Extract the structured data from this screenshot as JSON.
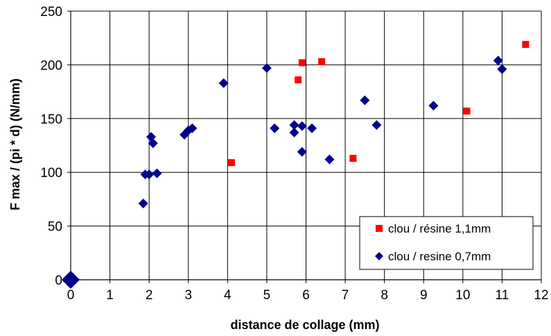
{
  "colors": {
    "series_red": "#ff0000",
    "series_blue": "#00008b",
    "grid": "#000000"
  },
  "chart_data": {
    "type": "scatter",
    "xlabel": "distance de collage (mm)",
    "ylabel": "F max / (pi * d) (N/mm)",
    "xlim": [
      0,
      12
    ],
    "ylim": [
      0,
      250
    ],
    "x_ticks": [
      0,
      1,
      2,
      3,
      4,
      5,
      6,
      7,
      8,
      9,
      10,
      11,
      12
    ],
    "y_ticks": [
      0,
      50,
      100,
      150,
      200,
      250
    ],
    "grid": true,
    "legend_position": "bottom-right",
    "series": [
      {
        "name": "clou / résine 1,1mm",
        "marker": "square",
        "color": "#ff0000",
        "points": [
          [
            4.1,
            109
          ],
          [
            5.8,
            186
          ],
          [
            5.9,
            202
          ],
          [
            6.4,
            203
          ],
          [
            7.2,
            113
          ],
          [
            10.1,
            157
          ],
          [
            11.6,
            219
          ]
        ]
      },
      {
        "name": "clou / resine 0,7mm",
        "marker": "diamond",
        "color": "#00008b",
        "points": [
          [
            0,
            0
          ],
          [
            1.85,
            71
          ],
          [
            1.9,
            98
          ],
          [
            2.0,
            98
          ],
          [
            2.05,
            133
          ],
          [
            2.1,
            127
          ],
          [
            2.2,
            99
          ],
          [
            2.9,
            135
          ],
          [
            3.0,
            139
          ],
          [
            3.1,
            141
          ],
          [
            3.9,
            183
          ],
          [
            5.0,
            197
          ],
          [
            5.2,
            141
          ],
          [
            5.7,
            137
          ],
          [
            5.7,
            144
          ],
          [
            5.9,
            119
          ],
          [
            5.9,
            143
          ],
          [
            6.15,
            141
          ],
          [
            6.6,
            112
          ],
          [
            7.5,
            167
          ],
          [
            7.8,
            144
          ],
          [
            9.25,
            162
          ],
          [
            10.9,
            204
          ],
          [
            11.0,
            196
          ]
        ]
      }
    ]
  }
}
